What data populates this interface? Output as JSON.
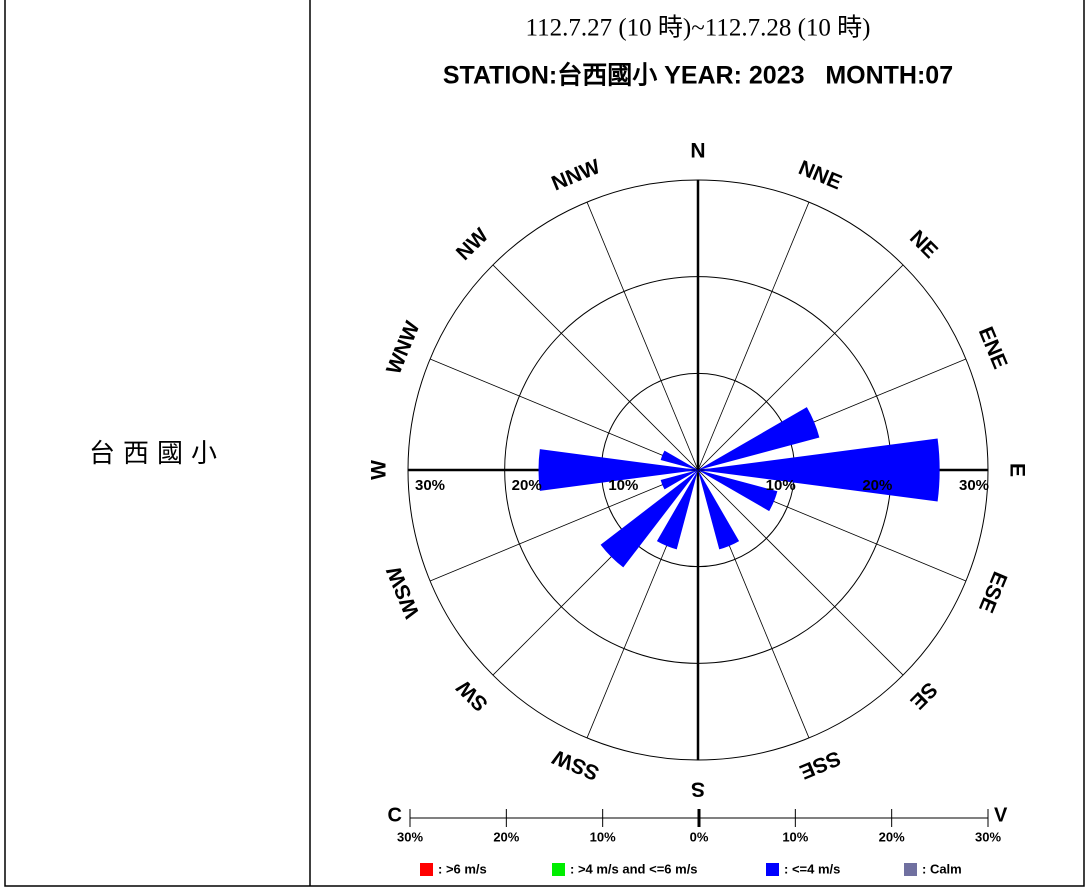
{
  "table": {
    "label": "台西國小"
  },
  "chart_data": {
    "type": "windrose",
    "title": "112.7.27 (10 時)~112.7.28 (10 時)",
    "subtitle": "STATION:台西國小 YEAR: 2023   MONTH:07",
    "categories": [
      "N",
      "NNE",
      "NE",
      "ENE",
      "E",
      "ESE",
      "SE",
      "SSE",
      "S",
      "SSW",
      "SW",
      "WSW",
      "W",
      "WNW",
      "NW",
      "NNW"
    ],
    "series": [
      {
        "name": ": >6 m/s",
        "color": "#ff0000",
        "values": [
          0,
          0,
          0,
          0,
          0,
          0,
          0,
          0,
          0,
          0,
          0,
          0,
          0,
          0,
          0,
          0
        ]
      },
      {
        "name": ": >4 m/s and <=6 m/s",
        "color": "#00ee00",
        "values": [
          0,
          0,
          0,
          0,
          0,
          0,
          0,
          0,
          0,
          0,
          0,
          0,
          0,
          0,
          0,
          0
        ]
      },
      {
        "name": ": <=4 m/s",
        "color": "#0000ff",
        "values": [
          0,
          0,
          0,
          13,
          25,
          8.5,
          0,
          8.5,
          0,
          8.5,
          12.7,
          4,
          16.5,
          4,
          0,
          0
        ]
      },
      {
        "name": ": Calm",
        "color": "#7070a0",
        "values": [
          0,
          0,
          0,
          0,
          0,
          0,
          0,
          0,
          0,
          0,
          0,
          0,
          0,
          0,
          0,
          0
        ]
      }
    ],
    "rlim": [
      0,
      30
    ],
    "rticks": [
      {
        "value": 10,
        "label": "10%"
      },
      {
        "value": 20,
        "label": "20%"
      },
      {
        "value": 30,
        "label": "30%"
      }
    ],
    "speed_scale": {
      "left": "C",
      "right": "V",
      "ticks": [
        {
          "value": -30,
          "label": "30%"
        },
        {
          "value": -20,
          "label": "20%"
        },
        {
          "value": -10,
          "label": "10%"
        },
        {
          "value": 0,
          "label": "0%"
        },
        {
          "value": 10,
          "label": "10%"
        },
        {
          "value": 20,
          "label": "20%"
        },
        {
          "value": 30,
          "label": "30%"
        }
      ]
    }
  }
}
